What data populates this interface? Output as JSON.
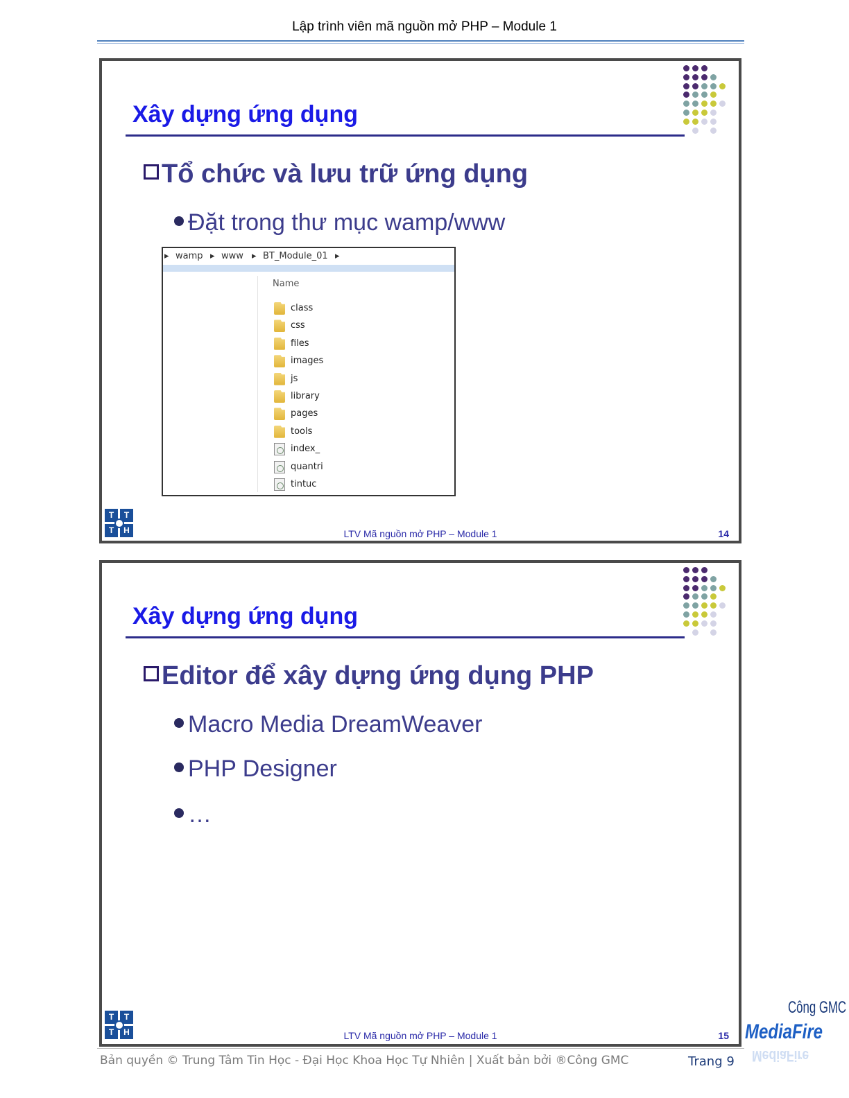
{
  "page_header": "Lập trình viên mã nguồn mở PHP – Module 1",
  "slides": [
    {
      "title": "Xây dựng ứng dụng",
      "heading": "Tổ chức và lưu trữ ứng dụng",
      "bullets": [
        "Đặt trong thư mục wamp/www"
      ],
      "explorer": {
        "breadcrumb": [
          "wamp",
          "www",
          "BT_Module_01"
        ],
        "column_header": "Name",
        "items": [
          {
            "name": "class",
            "icon": "folder-icon"
          },
          {
            "name": "css",
            "icon": "folder-icon"
          },
          {
            "name": "files",
            "icon": "folder-icon"
          },
          {
            "name": "images",
            "icon": "folder-icon"
          },
          {
            "name": "js",
            "icon": "folder-icon"
          },
          {
            "name": "library",
            "icon": "folder-icon"
          },
          {
            "name": "pages",
            "icon": "folder-icon"
          },
          {
            "name": "tools",
            "icon": "folder-icon"
          },
          {
            "name": "index_",
            "icon": "php-file-icon"
          },
          {
            "name": "quantri",
            "icon": "php-file-icon"
          },
          {
            "name": "tintuc",
            "icon": "php-file-icon"
          }
        ]
      },
      "footer": "LTV Mã nguồn mở PHP – Module 1",
      "number": "14"
    },
    {
      "title": "Xây dựng ứng dụng",
      "heading": "Editor để xây dựng ứng dụng PHP",
      "bullets": [
        "Macro Media DreamWeaver",
        "PHP Designer",
        "…"
      ],
      "footer": "LTV Mã nguồn mở PHP – Module 1",
      "number": "15"
    }
  ],
  "logo_letters": [
    "T",
    "T",
    "T",
    "H"
  ],
  "page_footer": "Bản quyền © Trung Tâm Tin Học - Đại Học Khoa Học Tự Nhiên | Xuất bản bởi ®Công GMC",
  "page_number": "Trang 9",
  "watermark": {
    "line1": "Công GMC",
    "line2": "MediaFire"
  },
  "colors": {
    "title": "#1a1ae6",
    "body_text": "#3c3c8c",
    "dot_purple": "#4b2a6e",
    "dot_teal": "#7fa3a3",
    "dot_yellow": "#c9c93a",
    "dot_light": "#d4d4e6"
  }
}
